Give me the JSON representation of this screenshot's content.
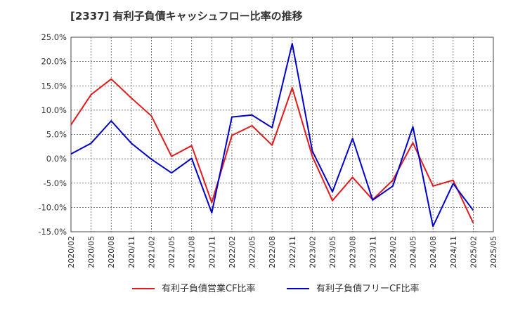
{
  "chart_data": {
    "type": "line",
    "title": "[2337]  有利子負債キャッシュフロー比率の推移",
    "x": [
      "2020/02",
      "2020/05",
      "2020/08",
      "2020/11",
      "2021/02",
      "2021/05",
      "2021/08",
      "2021/11",
      "2022/02",
      "2022/05",
      "2022/08",
      "2022/11",
      "2023/02",
      "2023/05",
      "2023/08",
      "2023/11",
      "2024/02",
      "2024/05",
      "2024/08",
      "2024/11",
      "2025/02",
      "2025/05"
    ],
    "yticks": [
      "25.0%",
      "20.0%",
      "15.0%",
      "10.0%",
      "5.0%",
      "0.0%",
      "-5.0%",
      "-10.0%",
      "-15.0%"
    ],
    "ylim": [
      -15,
      25
    ],
    "grid": true,
    "legend_position": "bottom",
    "series": [
      {
        "name": "有利子負債営業CF比率",
        "color": "#e31a1c",
        "values": [
          7.0,
          13.2,
          16.4,
          12.5,
          8.8,
          0.5,
          2.7,
          -9.0,
          4.8,
          6.8,
          2.8,
          14.6,
          0.5,
          -8.6,
          -3.8,
          -8.4,
          -4.4,
          3.3,
          -5.6,
          -4.4,
          -13.2,
          null
        ]
      },
      {
        "name": "有利子負債フリーCF比率",
        "color": "#0000cc",
        "values": [
          1.0,
          3.2,
          7.8,
          3.2,
          -0.1,
          -2.9,
          0.1,
          -11.1,
          8.6,
          9.0,
          6.4,
          23.7,
          1.6,
          -6.8,
          4.2,
          -8.5,
          -5.6,
          6.6,
          -13.9,
          -5.1,
          -10.6,
          null
        ]
      }
    ]
  }
}
